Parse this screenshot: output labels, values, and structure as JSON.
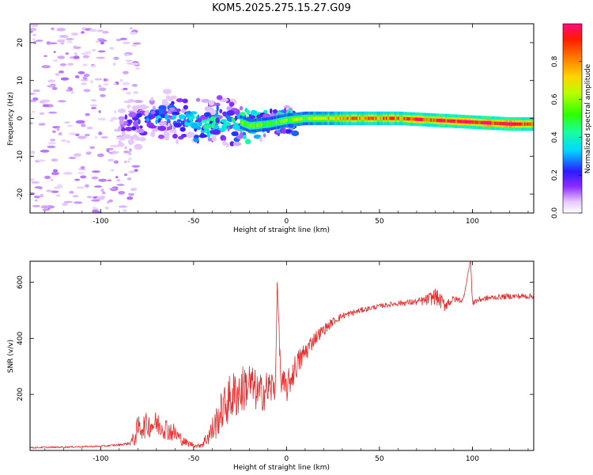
{
  "title": "KOM5.2025.275.15.27.G09",
  "colors": {
    "snr_line": "#ee2a2a",
    "frame": "#000000"
  },
  "chart_data": [
    {
      "type": "heatmap",
      "title": "KOM5.2025.275.15.27.G09",
      "xlabel": "Height of straight line (km)",
      "ylabel": "Frequency (Hz)",
      "xlim": [
        -138,
        133
      ],
      "ylim": [
        -25,
        25
      ],
      "xticks": [
        -100,
        -50,
        0,
        50,
        100
      ],
      "yticks": [
        -20,
        -10,
        0,
        10,
        20
      ],
      "xticklabels": [
        "-100",
        "-50",
        "0",
        "50",
        "100"
      ],
      "yticklabels": [
        "-20",
        "-10",
        "0",
        "10",
        "20"
      ],
      "ridge": {
        "x": [
          -90,
          -80,
          -70,
          -60,
          -50,
          -40,
          -30,
          -20,
          -10,
          0,
          10,
          20,
          40,
          60,
          80,
          100,
          120,
          133
        ],
        "y": [
          -1.5,
          -1,
          0,
          0.5,
          -1.5,
          -1.5,
          0,
          -2,
          -1.5,
          -0.5,
          0,
          0,
          0,
          0,
          -0.5,
          -1,
          -1.5,
          -1.5
        ],
        "amplitude": [
          0.15,
          0.25,
          0.3,
          0.3,
          0.4,
          0.45,
          0.4,
          0.55,
          0.45,
          0.5,
          0.55,
          0.65,
          0.75,
          0.8,
          0.85,
          0.9,
          0.9,
          0.85
        ]
      },
      "colorbar": {
        "label": "Normalized spectral amplitude",
        "range": [
          0,
          1
        ],
        "ticks": [
          0.0,
          0.2,
          0.4,
          0.6,
          0.8
        ],
        "ticklabels": [
          "0.0",
          "0.2",
          "0.4",
          "0.6",
          "0.8"
        ]
      }
    },
    {
      "type": "line",
      "xlabel": "Height of straight line (km)",
      "ylabel": "SNR (v/v)",
      "xlim": [
        -138,
        133
      ],
      "ylim": [
        0,
        675
      ],
      "xticks": [
        -100,
        -50,
        0,
        50,
        100
      ],
      "yticks": [
        200,
        400,
        600
      ],
      "xticklabels": [
        "-100",
        "-50",
        "0",
        "50",
        "100"
      ],
      "yticklabels": [
        "200",
        "400",
        "600"
      ],
      "series": [
        {
          "name": "SNR",
          "x": [
            -138,
            -120,
            -100,
            -90,
            -85,
            -82,
            -80,
            -75,
            -70,
            -65,
            -60,
            -55,
            -50,
            -48,
            -45,
            -40,
            -35,
            -30,
            -25,
            -20,
            -15,
            -10,
            -6,
            -5,
            -3,
            0,
            5,
            10,
            15,
            20,
            25,
            30,
            40,
            50,
            60,
            70,
            75,
            80,
            85,
            90,
            95,
            99,
            100,
            105,
            110,
            120,
            133
          ],
          "values": [
            10,
            12,
            15,
            20,
            25,
            40,
            80,
            90,
            95,
            80,
            60,
            30,
            20,
            15,
            25,
            70,
            140,
            190,
            210,
            240,
            200,
            220,
            230,
            600,
            240,
            220,
            300,
            350,
            400,
            430,
            460,
            480,
            500,
            515,
            525,
            530,
            535,
            550,
            520,
            540,
            535,
            680,
            530,
            540,
            545,
            550,
            550
          ],
          "noise": [
            3,
            3,
            3,
            4,
            5,
            30,
            45,
            45,
            45,
            40,
            35,
            15,
            8,
            6,
            15,
            50,
            70,
            90,
            90,
            80,
            70,
            70,
            60,
            0,
            60,
            55,
            50,
            40,
            25,
            20,
            15,
            12,
            10,
            8,
            10,
            12,
            20,
            30,
            25,
            12,
            10,
            0,
            15,
            10,
            10,
            10,
            10
          ]
        }
      ]
    }
  ]
}
